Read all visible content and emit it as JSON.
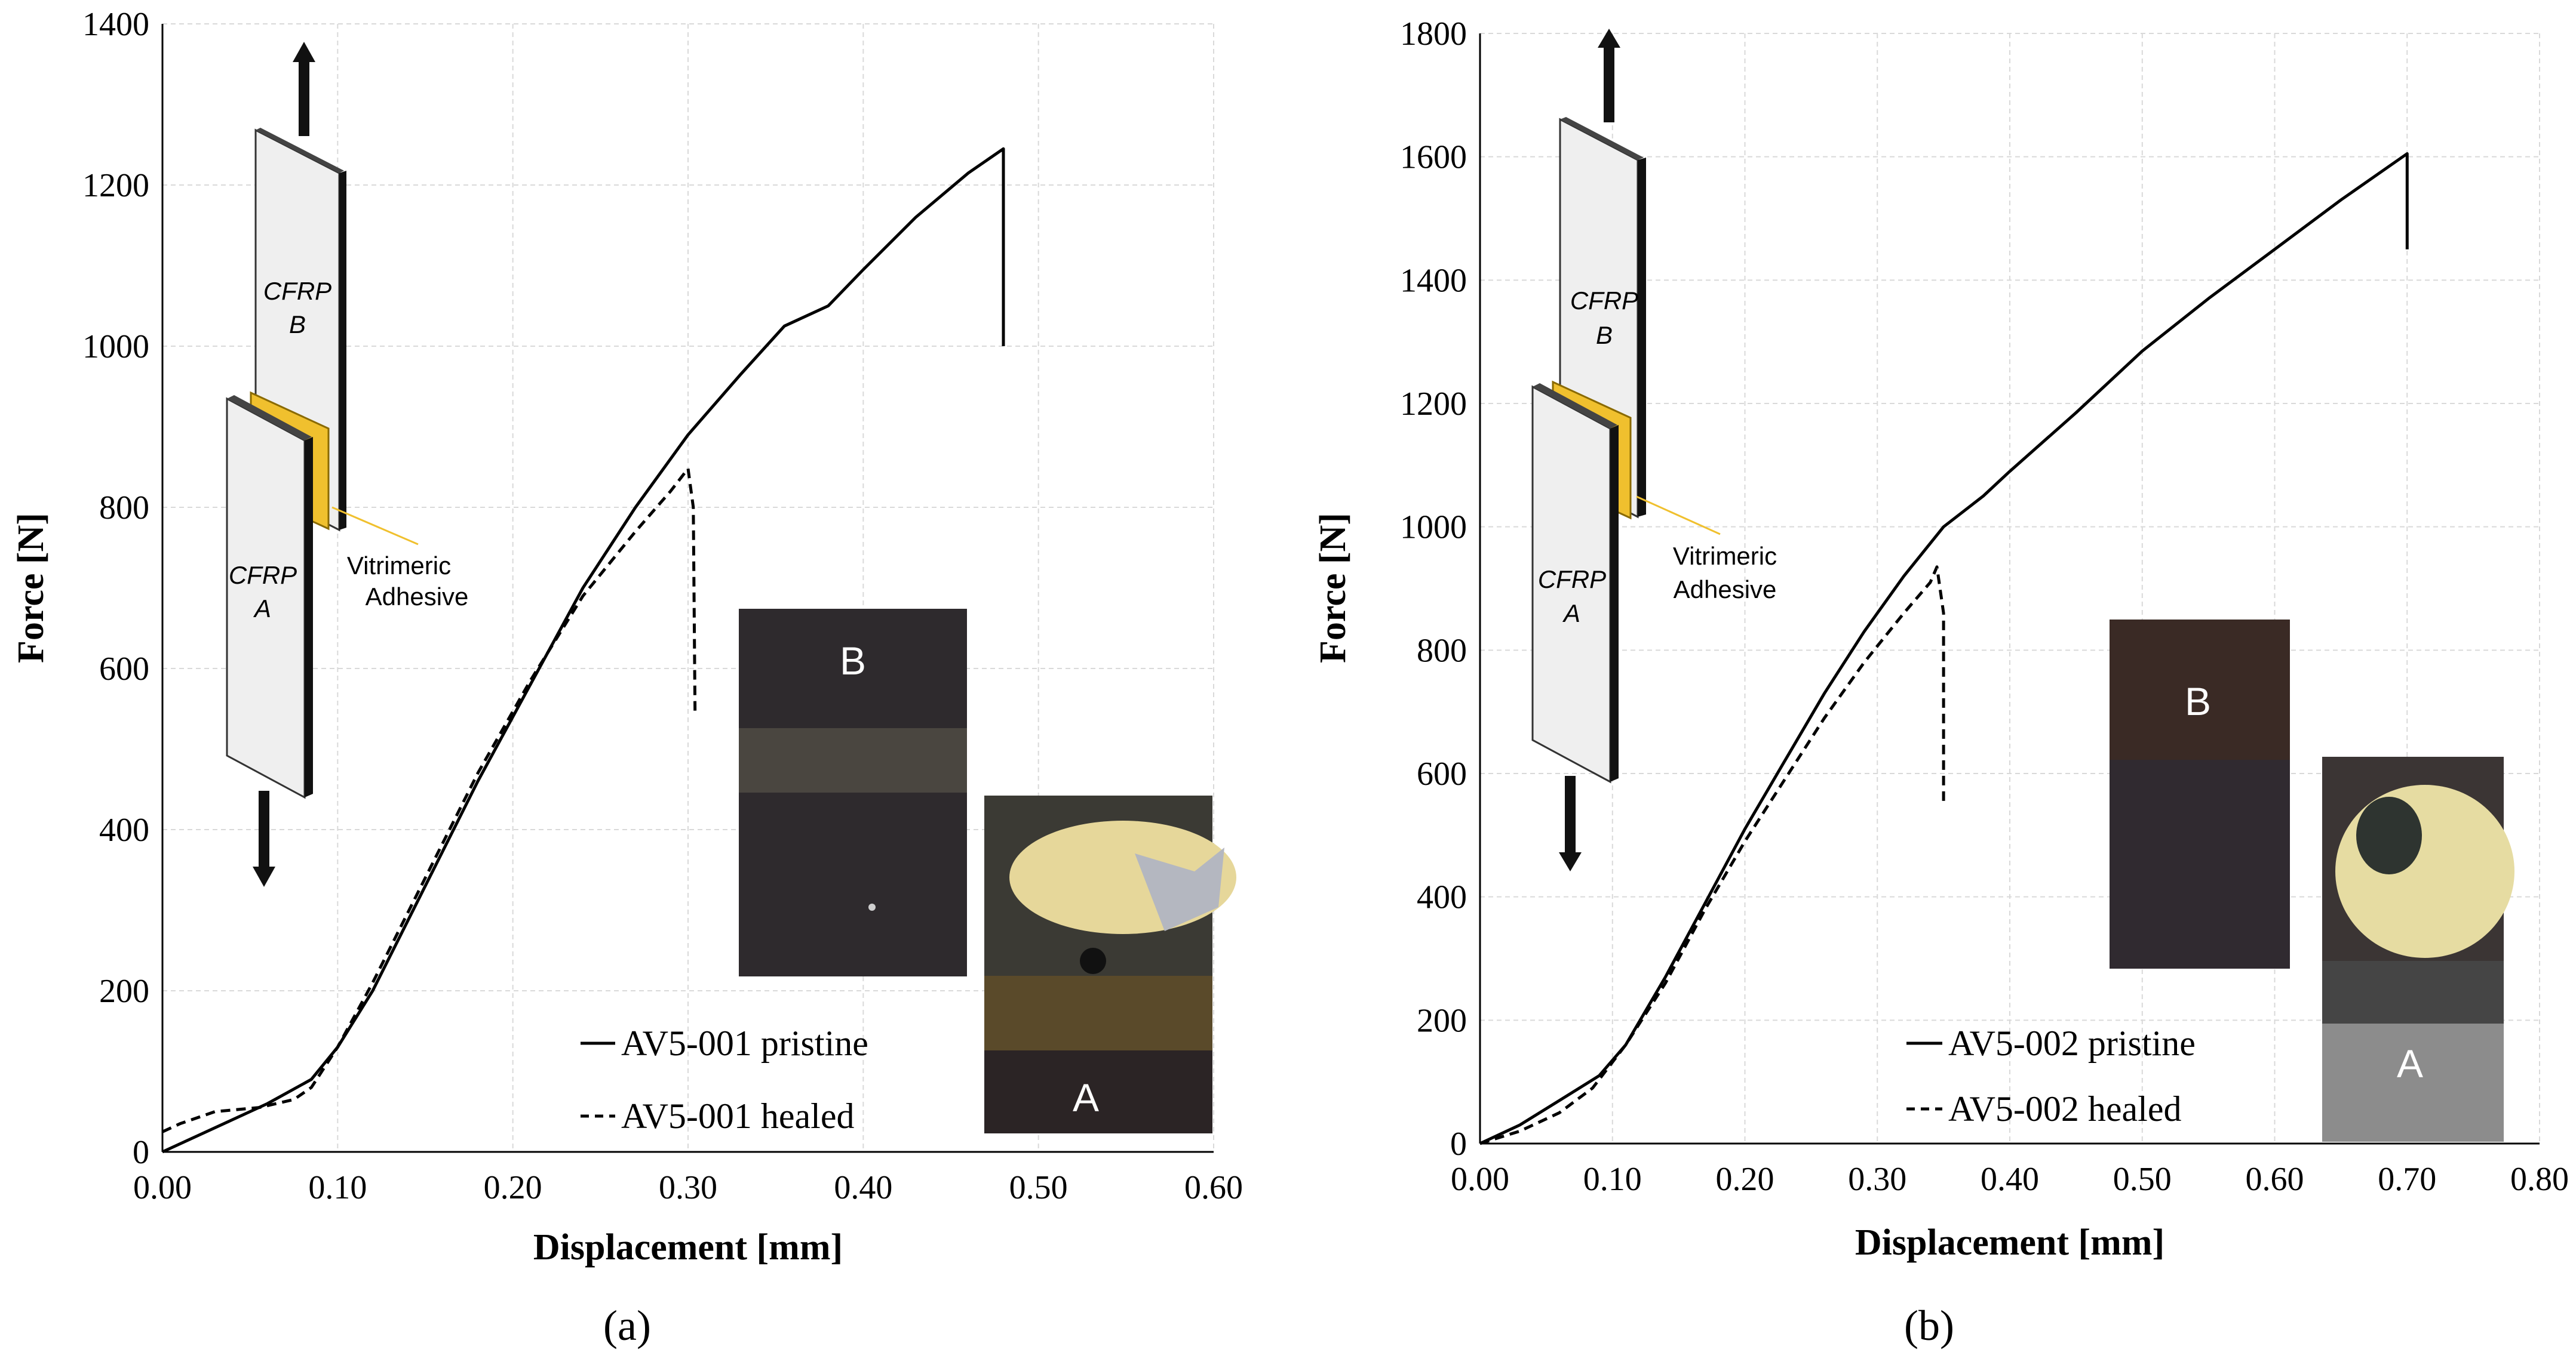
{
  "chart_data": [
    {
      "type": "line",
      "panel_label": "(a)",
      "xlabel": "Displacement [mm]",
      "ylabel": "Force [N]",
      "xlim": [
        0,
        0.6
      ],
      "ylim": [
        0,
        1400
      ],
      "xticks": [
        "0.00",
        "0.10",
        "0.20",
        "0.30",
        "0.40",
        "0.50",
        "0.60"
      ],
      "yticks": [
        "0",
        "200",
        "400",
        "600",
        "800",
        "1000",
        "1200",
        "1400"
      ],
      "grid": true,
      "legend_position": "bottom-right",
      "series": [
        {
          "name": "AV5-001 pristine",
          "style": "solid",
          "x": [
            0,
            0.02,
            0.04,
            0.06,
            0.085,
            0.1,
            0.12,
            0.15,
            0.18,
            0.21,
            0.24,
            0.27,
            0.3,
            0.33,
            0.355,
            0.38,
            0.4,
            0.43,
            0.46,
            0.48,
            0.48
          ],
          "y": [
            0,
            20,
            40,
            60,
            90,
            130,
            200,
            330,
            460,
            580,
            700,
            800,
            890,
            965,
            1025,
            1050,
            1095,
            1160,
            1215,
            1245,
            1000
          ]
        },
        {
          "name": "AV5-001 healed",
          "style": "dashed",
          "x": [
            0,
            0.01,
            0.03,
            0.055,
            0.075,
            0.085,
            0.1,
            0.12,
            0.15,
            0.18,
            0.21,
            0.24,
            0.27,
            0.29,
            0.3,
            0.303,
            0.304
          ],
          "y": [
            25,
            35,
            50,
            55,
            65,
            80,
            130,
            210,
            340,
            470,
            585,
            690,
            770,
            820,
            848,
            800,
            545
          ]
        }
      ],
      "inset": {
        "specimen_labels": [
          "CFRP B",
          "CFRP A"
        ],
        "adhesive_label": "Vitrimeric Adhesive",
        "photo_labels": [
          "B",
          "A"
        ]
      }
    },
    {
      "type": "line",
      "panel_label": "(b)",
      "xlabel": "Displacement [mm]",
      "ylabel": "Force [N]",
      "xlim": [
        0,
        0.8
      ],
      "ylim": [
        0,
        1800
      ],
      "xticks": [
        "0.00",
        "0.10",
        "0.20",
        "0.30",
        "0.40",
        "0.50",
        "0.60",
        "0.70",
        "0.80"
      ],
      "yticks": [
        "0",
        "200",
        "400",
        "600",
        "800",
        "1000",
        "1200",
        "1400",
        "1600",
        "1800"
      ],
      "grid": true,
      "legend_position": "bottom-right",
      "series": [
        {
          "name": "AV5-002 pristine",
          "style": "solid",
          "x": [
            0,
            0.03,
            0.06,
            0.09,
            0.11,
            0.14,
            0.17,
            0.2,
            0.23,
            0.26,
            0.29,
            0.32,
            0.35,
            0.38,
            0.4,
            0.45,
            0.5,
            0.55,
            0.6,
            0.65,
            0.69,
            0.7,
            0.7
          ],
          "y": [
            0,
            30,
            70,
            110,
            160,
            270,
            390,
            510,
            620,
            730,
            830,
            920,
            1000,
            1050,
            1090,
            1185,
            1285,
            1370,
            1450,
            1530,
            1590,
            1605,
            1450
          ]
        },
        {
          "name": "AV5-002  healed",
          "style": "dashed",
          "x": [
            0,
            0.03,
            0.06,
            0.085,
            0.11,
            0.14,
            0.17,
            0.2,
            0.23,
            0.26,
            0.29,
            0.32,
            0.34,
            0.345,
            0.35,
            0.35
          ],
          "y": [
            0,
            20,
            50,
            90,
            160,
            260,
            380,
            490,
            590,
            690,
            780,
            860,
            910,
            935,
            860,
            555
          ]
        }
      ],
      "inset": {
        "specimen_labels": [
          "CFRP B",
          "CFRP A"
        ],
        "adhesive_label": "Vitrimeric Adhesive",
        "photo_labels": [
          "B",
          "A"
        ]
      }
    }
  ]
}
